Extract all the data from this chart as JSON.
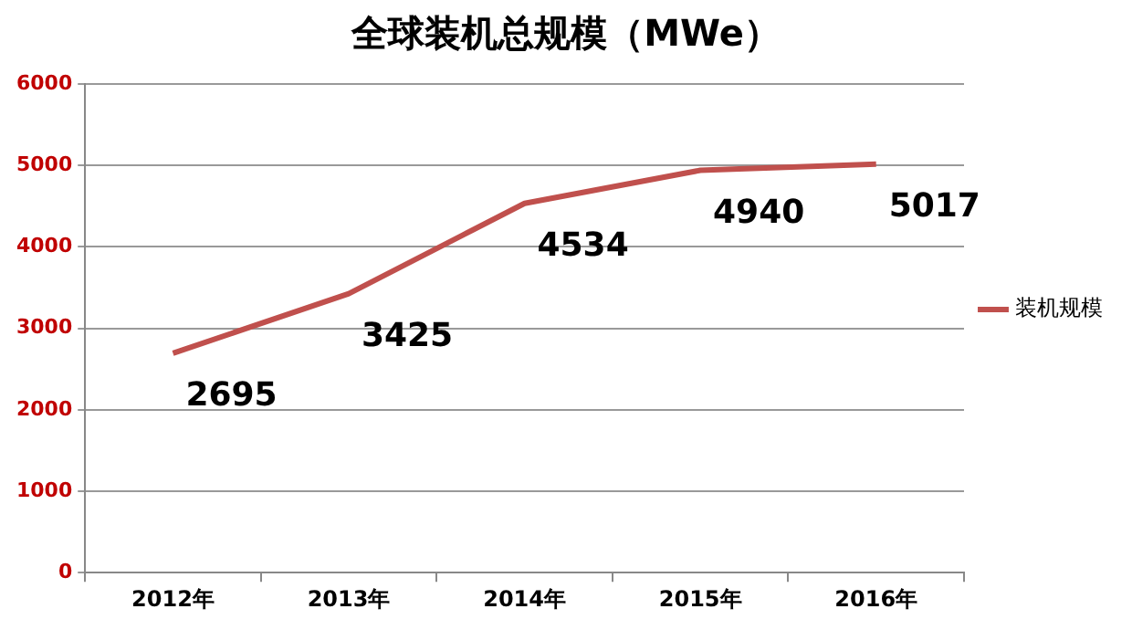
{
  "chart_data": {
    "type": "line",
    "title": "全球装机总规模（MWe）",
    "categories": [
      "2012年",
      "2013年",
      "2014年",
      "2015年",
      "2016年"
    ],
    "series": [
      {
        "name": "装机规模",
        "color": "#c0504d",
        "values": [
          2695,
          3425,
          4534,
          4940,
          5017
        ]
      }
    ],
    "ylim": [
      0,
      6000
    ],
    "yticks": [
      0,
      1000,
      2000,
      3000,
      4000,
      5000,
      6000
    ],
    "grid": "y",
    "legend": "right",
    "data_labels": true,
    "marker": "none"
  }
}
